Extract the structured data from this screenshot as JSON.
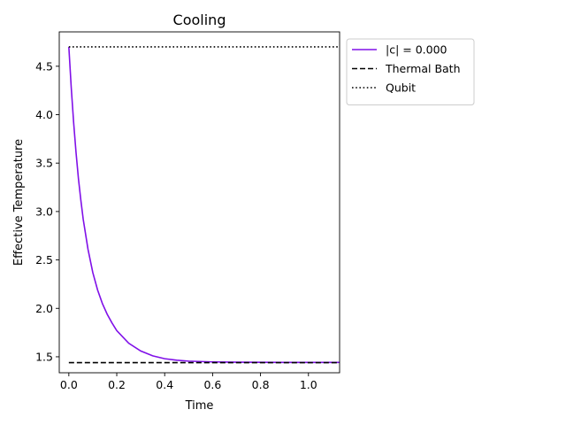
{
  "chart_data": {
    "type": "line",
    "title": "Cooling",
    "xlabel": "Time",
    "ylabel": "Effective Temperature",
    "xlim": [
      -0.04,
      1.13
    ],
    "ylim": [
      1.335,
      4.855
    ],
    "xticks": [
      "0.0",
      "0.2",
      "0.4",
      "0.6",
      "0.8",
      "1.0"
    ],
    "yticks": [
      "1.5",
      "2.0",
      "2.5",
      "3.0",
      "3.5",
      "4.0",
      "4.5"
    ],
    "grid": false,
    "legend_position": "outside upper right",
    "series": [
      {
        "name": "|c| = 0.000",
        "style": "solid",
        "color": "#8010e8",
        "x": [
          0.0,
          0.01,
          0.02,
          0.03,
          0.04,
          0.05,
          0.06,
          0.08,
          0.1,
          0.12,
          0.14,
          0.16,
          0.18,
          0.2,
          0.25,
          0.3,
          0.35,
          0.4,
          0.45,
          0.5,
          0.6,
          0.7,
          0.8,
          0.9,
          1.0,
          1.13
        ],
        "y": [
          4.7,
          4.28,
          3.92,
          3.61,
          3.34,
          3.12,
          2.92,
          2.61,
          2.37,
          2.19,
          2.05,
          1.94,
          1.85,
          1.77,
          1.64,
          1.56,
          1.51,
          1.48,
          1.465,
          1.455,
          1.447,
          1.444,
          1.443,
          1.442,
          1.442,
          1.442
        ]
      },
      {
        "name": "Thermal Bath",
        "style": "dashed",
        "color": "#000000",
        "x": [
          0.0,
          1.13
        ],
        "y": [
          1.44,
          1.44
        ]
      },
      {
        "name": "Qubit",
        "style": "dotted",
        "color": "#000000",
        "x": [
          0.0,
          1.13
        ],
        "y": [
          4.7,
          4.7
        ]
      }
    ]
  }
}
